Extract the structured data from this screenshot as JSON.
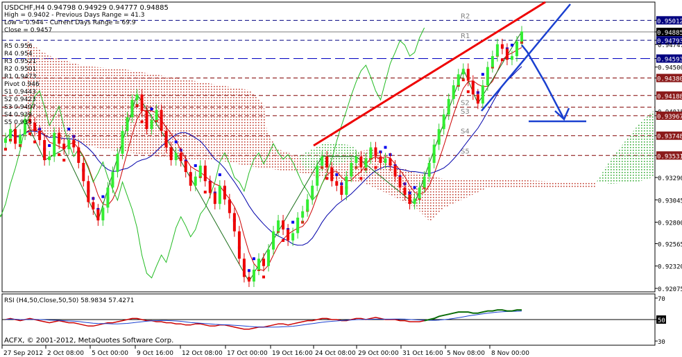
{
  "chart_data": {
    "type": "line",
    "symbol": "USDCHF,H4",
    "header_ohlc": "0.94798 0.94929 0.94777 0.94885",
    "info_lines": [
      "High = 0.9402 - Previous Days Range = 41.3",
      "Low = 0.944 - Current Days Range = 69.9",
      "Close = 0.9457"
    ],
    "pivot_labels": [
      "R5 0.956",
      "R4 0.954",
      "R3 0.9521",
      "R2 0.9501",
      "R1 0.9473",
      "Pivot 0.946",
      "S1 0.9443",
      "S2 0.9423",
      "S3 0.9407",
      "S4 0.939",
      "S5 0.935"
    ],
    "ylim": [
      0.92075,
      0.95098
    ],
    "y_ticks": [
      "0.95012",
      "0.94885",
      "0.94793",
      "0.94747",
      "0.94593",
      "0.94500",
      "0.94380",
      "0.94188",
      "0.94015",
      "0.93967",
      "0.93748",
      "0.93531",
      "0.93290",
      "0.93045",
      "0.92800",
      "0.92565",
      "0.92320",
      "0.92075"
    ],
    "y_tick_values": [
      0.95012,
      0.94885,
      0.94793,
      0.94747,
      0.94593,
      0.945,
      0.9438,
      0.94188,
      0.94015,
      0.93967,
      0.93748,
      0.93531,
      0.9329,
      0.93045,
      0.928,
      0.92565,
      0.9232,
      0.92075
    ],
    "highlighted_ticks": [
      {
        "label": "0.95012",
        "value": 0.95012,
        "style": "navy"
      },
      {
        "label": "0.94885",
        "value": 0.94885,
        "style": "black"
      },
      {
        "label": "0.94793",
        "value": 0.94793,
        "style": "navy"
      },
      {
        "label": "0.94593",
        "value": 0.94593,
        "style": "navy"
      },
      {
        "label": "0.94380",
        "value": 0.9438,
        "style": "maroon"
      },
      {
        "label": "0.94188",
        "value": 0.94188,
        "style": "maroon"
      },
      {
        "label": "0.93967",
        "value": 0.93967,
        "style": "maroon"
      },
      {
        "label": "0.93748",
        "value": 0.93748,
        "style": "maroon"
      },
      {
        "label": "0.93531",
        "value": 0.93531,
        "style": "maroon"
      }
    ],
    "x_ticks": [
      "27 Sep 2012",
      "2 Oct 08:00",
      "5 Oct 00:00",
      "9 Oct 16:00",
      "12 Oct 08:00",
      "17 Oct 00:00",
      "19 Oct 16:00",
      "24 Oct 08:00",
      "29 Oct 00:00",
      "31 Oct 16:00",
      "5 Nov 08:00",
      "8 Nov 00:00"
    ],
    "levels": [
      {
        "name": "R2",
        "value": 0.95012,
        "color": "#000080",
        "dash": "6,4"
      },
      {
        "name": "R1",
        "value": 0.94793,
        "color": "#000080",
        "dash": "6,4"
      },
      {
        "name": "",
        "value": 0.94593,
        "color": "#0000c0",
        "dash": "14,6"
      },
      {
        "name": "",
        "value": 0.9438,
        "color": "#800000",
        "dash": "6,4"
      },
      {
        "name": "",
        "value": 0.94188,
        "color": "#800000",
        "dash": "6,4"
      },
      {
        "name": "S2",
        "value": 0.9406,
        "color": "#800000",
        "dash": "6,4"
      },
      {
        "name": "S3",
        "value": 0.93967,
        "color": "#800000",
        "dash": "6,4"
      },
      {
        "name": "S4",
        "value": 0.93748,
        "color": "#800000",
        "dash": "6,4"
      },
      {
        "name": "S5",
        "value": 0.93531,
        "color": "#800000",
        "dash": "6,4"
      }
    ],
    "price_close": [
      0.9372,
      0.9382,
      0.9366,
      0.9376,
      0.9393,
      0.9389,
      0.938,
      0.937,
      0.9348,
      0.9352,
      0.9378,
      0.9366,
      0.936,
      0.937,
      0.9362,
      0.9345,
      0.9325,
      0.9302,
      0.9294,
      0.9282,
      0.9296,
      0.9318,
      0.9335,
      0.9355,
      0.938,
      0.9395,
      0.9414,
      0.942,
      0.9402,
      0.9382,
      0.9392,
      0.9403,
      0.938,
      0.9362,
      0.9348,
      0.9356,
      0.9347,
      0.9335,
      0.932,
      0.933,
      0.9342,
      0.9325,
      0.9312,
      0.93,
      0.932,
      0.9305,
      0.929,
      0.927,
      0.924,
      0.922,
      0.9215,
      0.9228,
      0.924,
      0.9232,
      0.925,
      0.927,
      0.9282,
      0.9272,
      0.926,
      0.9268,
      0.9285,
      0.9292,
      0.9305,
      0.932,
      0.9342,
      0.9352,
      0.934,
      0.9325,
      0.932,
      0.931,
      0.933,
      0.9345,
      0.9352,
      0.934,
      0.935,
      0.9362,
      0.9352,
      0.9345,
      0.935,
      0.9342,
      0.933,
      0.9318,
      0.931,
      0.93,
      0.9306,
      0.9318,
      0.933,
      0.9345,
      0.9365,
      0.9382,
      0.9398,
      0.9415,
      0.943,
      0.9442,
      0.9448,
      0.9435,
      0.942,
      0.941,
      0.943,
      0.945,
      0.9462,
      0.9475,
      0.947,
      0.9458,
      0.9462,
      0.9478,
      0.9489
    ],
    "rsi": {
      "label": "RSI (H4,50,Close,50,50) 58.9834 57.4271",
      "ylim": [
        30,
        70
      ],
      "ticks": [
        "70",
        "50",
        "30"
      ],
      "level": 50,
      "values": [
        50,
        51,
        50,
        49,
        50,
        51,
        50,
        49,
        48,
        47,
        48,
        49,
        48,
        47,
        47,
        46,
        45,
        44,
        44,
        45,
        46,
        47,
        47,
        48,
        49,
        50,
        51,
        51,
        50,
        49,
        49,
        48,
        48,
        47,
        47,
        46,
        46,
        45,
        45,
        46,
        46,
        45,
        44,
        44,
        45,
        45,
        44,
        43,
        42,
        41,
        41,
        42,
        43,
        43,
        44,
        45,
        46,
        46,
        45,
        46,
        47,
        48,
        49,
        49,
        50,
        51,
        51,
        50,
        50,
        49,
        49,
        50,
        51,
        51,
        50,
        51,
        52,
        51,
        50,
        50,
        50,
        49,
        49,
        48,
        48,
        48,
        49,
        50,
        51,
        53,
        54,
        55,
        56,
        57,
        57,
        57,
        56,
        56,
        57,
        58,
        58,
        59,
        59,
        58,
        58,
        59,
        59
      ]
    },
    "copyright": "ACFX, © 2001-2012, MetaQuotes Software Corp."
  }
}
